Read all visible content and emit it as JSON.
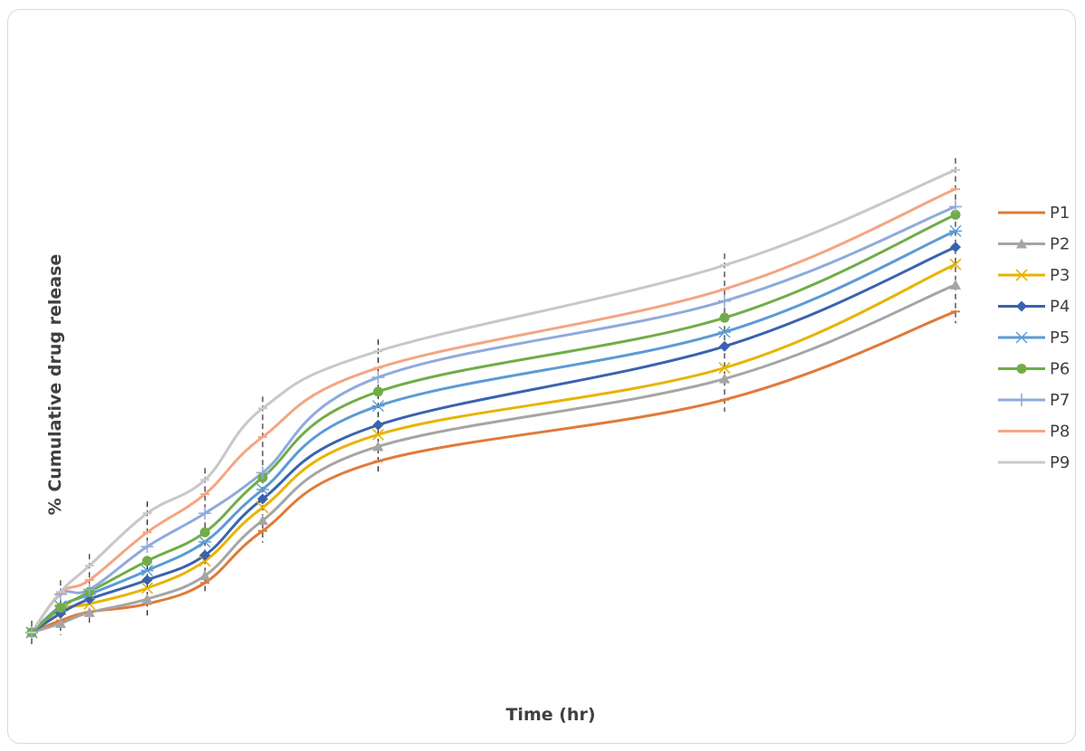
{
  "chart_data": {
    "type": "line",
    "title": "",
    "xlabel": "Time (hr)",
    "ylabel": "% Cumulative drug release",
    "x": [
      0,
      0.5,
      1,
      2,
      3,
      4,
      6,
      12,
      16
    ],
    "xlim": [
      0,
      16
    ],
    "ylim": [
      0,
      100
    ],
    "grid": false,
    "legend": "right",
    "error_bars": true,
    "series": [
      {
        "name": "P1",
        "color": "#E07A3A",
        "marker": "dash",
        "values": [
          0,
          2.5,
          4.3,
          6.0,
          10.4,
          21.3,
          35.9,
          48.8,
          67.3
        ]
      },
      {
        "name": "P2",
        "color": "#A5A5A5",
        "marker": "triangle",
        "values": [
          0,
          1.9,
          4.2,
          7.0,
          11.9,
          23.5,
          39.0,
          53.2,
          72.9
        ]
      },
      {
        "name": "P3",
        "color": "#E8B400",
        "marker": "x",
        "values": [
          0,
          4.8,
          6.0,
          9.3,
          15.0,
          26.2,
          41.5,
          55.5,
          77.2
        ]
      },
      {
        "name": "P4",
        "color": "#3B62AE",
        "marker": "diamond",
        "values": [
          0,
          4.0,
          7.0,
          11.0,
          16.2,
          28.0,
          43.5,
          60.0,
          80.8
        ]
      },
      {
        "name": "P5",
        "color": "#5B9BD5",
        "marker": "asterisk",
        "values": [
          0,
          5.5,
          8.0,
          13.0,
          19.0,
          30.0,
          47.5,
          63.0,
          84.2
        ]
      },
      {
        "name": "P6",
        "color": "#70AD47",
        "marker": "circle",
        "values": [
          0,
          5.2,
          8.5,
          15.0,
          21.0,
          32.5,
          50.5,
          66.0,
          87.6
        ]
      },
      {
        "name": "P7",
        "color": "#8FAADC",
        "marker": "plus",
        "values": [
          0,
          8.0,
          9.0,
          18.0,
          25.0,
          33.5,
          53.5,
          69.5,
          89.3
        ]
      },
      {
        "name": "P8",
        "color": "#F4A582",
        "marker": "dash",
        "values": [
          0,
          8.3,
          11.0,
          21.0,
          29.0,
          41.0,
          55.5,
          72.0,
          93.0
        ]
      },
      {
        "name": "P9",
        "color": "#C8C8C8",
        "marker": "dash",
        "values": [
          0,
          8.5,
          14.0,
          25.0,
          32.0,
          47.0,
          59.0,
          77.0,
          97.0
        ]
      }
    ]
  }
}
